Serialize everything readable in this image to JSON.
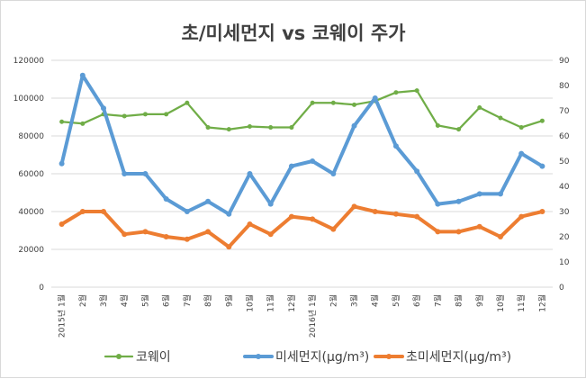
{
  "chart_data": {
    "type": "line",
    "title": "초/미세먼지 vs 코웨이 주가",
    "categories": [
      "2015년 1월",
      "2월",
      "3월",
      "4월",
      "5월",
      "6월",
      "7월",
      "8월",
      "9월",
      "10월",
      "11월",
      "12월",
      "2016년 1월",
      "2월",
      "3월",
      "4월",
      "5월",
      "6월",
      "7월",
      "8월",
      "9월",
      "10월",
      "11월",
      "12월"
    ],
    "y_left": {
      "min": 0,
      "max": 120000,
      "ticks": [
        "0",
        "20000",
        "40000",
        "60000",
        "80000",
        "100000",
        "120000"
      ]
    },
    "y_right": {
      "min": 0,
      "max": 90,
      "ticks": [
        "0",
        "10",
        "20",
        "30",
        "40",
        "50",
        "60",
        "70",
        "80",
        "90"
      ]
    },
    "grid": true,
    "legend_position": "bottom",
    "series": [
      {
        "name": "코웨이",
        "axis": "left",
        "color": "#70ad47",
        "values": [
          87500,
          86500,
          91500,
          90500,
          91500,
          91500,
          97500,
          84500,
          83500,
          85000,
          84500,
          84500,
          97500,
          97500,
          96500,
          98500,
          103000,
          104000,
          85500,
          83500,
          95000,
          89500,
          84500,
          88000
        ]
      },
      {
        "name": "미세먼지(μg/m³)",
        "axis": "right",
        "color": "#5b9bd5",
        "values": [
          49,
          84,
          71,
          45,
          45,
          35,
          30,
          34,
          29,
          45,
          33,
          48,
          50,
          45,
          64,
          75,
          56,
          46,
          33,
          34,
          37,
          37,
          53,
          48
        ]
      },
      {
        "name": "초미세먼지(μg/m³)",
        "axis": "right",
        "color": "#ed7d31",
        "values": [
          25,
          30,
          30,
          21,
          22,
          20,
          19,
          22,
          16,
          25,
          21,
          28,
          27,
          23,
          32,
          30,
          29,
          28,
          22,
          22,
          24,
          20,
          28,
          30
        ]
      }
    ]
  }
}
